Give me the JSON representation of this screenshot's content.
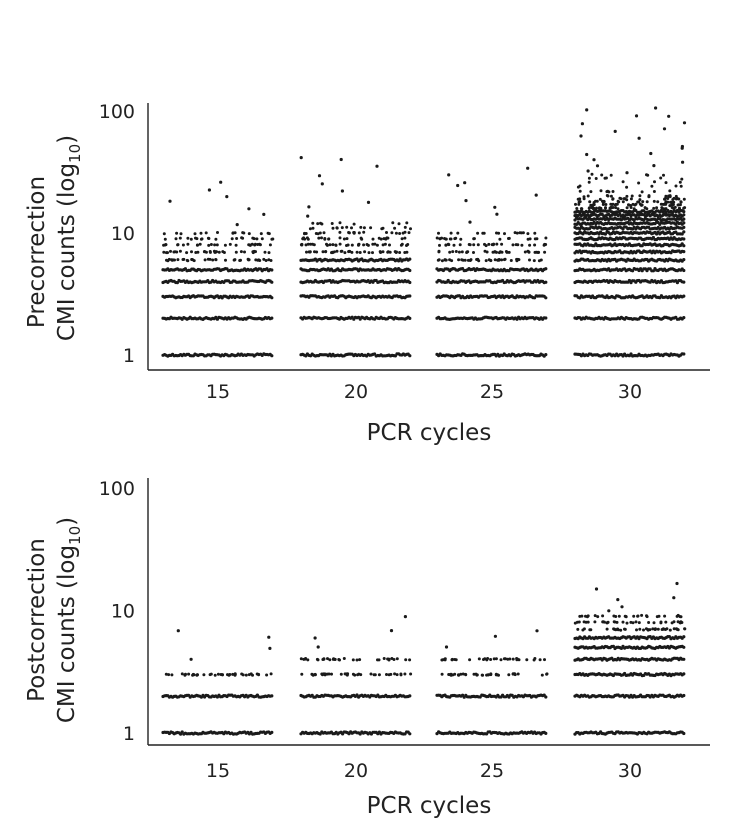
{
  "chart_data": [
    {
      "type": "scatter",
      "panel": "top",
      "yscale": "log",
      "ylim": [
        1,
        100
      ],
      "yticks": [
        {
          "value": 1,
          "label": "1"
        },
        {
          "value": 10,
          "label": "10"
        },
        {
          "value": 100,
          "label": "100"
        }
      ],
      "categories": [
        "15",
        "20",
        "25",
        "30"
      ],
      "xlabel": "PCR cycles",
      "ylabel_line1": "Precorrection",
      "ylabel_line2_main": "CMI counts (log",
      "ylabel_line2_sub": "10",
      "ylabel_line2_end": ")",
      "groups": [
        {
          "name": "15",
          "dense_levels": [
            1,
            2,
            3,
            4,
            5
          ],
          "sparse_levels": [
            6,
            7,
            8,
            9,
            10
          ],
          "outliers": [
            12,
            14,
            16,
            18,
            20,
            22,
            26
          ]
        },
        {
          "name": "20",
          "dense_levels": [
            1,
            2,
            3,
            4,
            5,
            6
          ],
          "sparse_levels": [
            7,
            8,
            9,
            10,
            11,
            12
          ],
          "outliers": [
            14,
            16,
            18,
            22,
            26,
            30,
            36,
            40,
            42
          ]
        },
        {
          "name": "25",
          "dense_levels": [
            1,
            2,
            3,
            4,
            5
          ],
          "sparse_levels": [
            6,
            7,
            8,
            9,
            10
          ],
          "outliers": [
            12,
            14,
            16,
            18,
            20,
            24,
            26,
            30,
            34
          ]
        },
        {
          "name": "30",
          "dense_levels": [
            1,
            2,
            3,
            4,
            5,
            6,
            7,
            8,
            9,
            10,
            11,
            12,
            13,
            14,
            15
          ],
          "sparse_levels": [
            16,
            17,
            18,
            19,
            20,
            22,
            24,
            26,
            28,
            30
          ],
          "outliers": [
            32,
            36,
            40,
            45,
            50,
            60,
            70,
            80,
            90,
            100
          ]
        }
      ]
    },
    {
      "type": "scatter",
      "panel": "bottom",
      "yscale": "log",
      "ylim": [
        1,
        100
      ],
      "yticks": [
        {
          "value": 1,
          "label": "1"
        },
        {
          "value": 10,
          "label": "10"
        },
        {
          "value": 100,
          "label": "100"
        }
      ],
      "categories": [
        "15",
        "20",
        "25",
        "30"
      ],
      "xlabel": "PCR cycles",
      "ylabel_line1": "Postcorrection",
      "ylabel_line2_main": "CMI counts (log",
      "ylabel_line2_sub": "10",
      "ylabel_line2_end": ")",
      "groups": [
        {
          "name": "15",
          "dense_levels": [
            1,
            2
          ],
          "sparse_levels": [
            3
          ],
          "outliers": [
            4,
            5,
            6,
            7
          ]
        },
        {
          "name": "20",
          "dense_levels": [
            1,
            2
          ],
          "sparse_levels": [
            3,
            4
          ],
          "outliers": [
            5,
            6,
            7,
            9
          ]
        },
        {
          "name": "25",
          "dense_levels": [
            1,
            2
          ],
          "sparse_levels": [
            3,
            4
          ],
          "outliers": [
            5,
            6,
            7
          ]
        },
        {
          "name": "30",
          "dense_levels": [
            1,
            2,
            3,
            4,
            5,
            6
          ],
          "sparse_levels": [
            7,
            8,
            9
          ],
          "outliers": [
            10,
            11,
            12,
            13,
            15,
            17
          ]
        }
      ]
    }
  ]
}
